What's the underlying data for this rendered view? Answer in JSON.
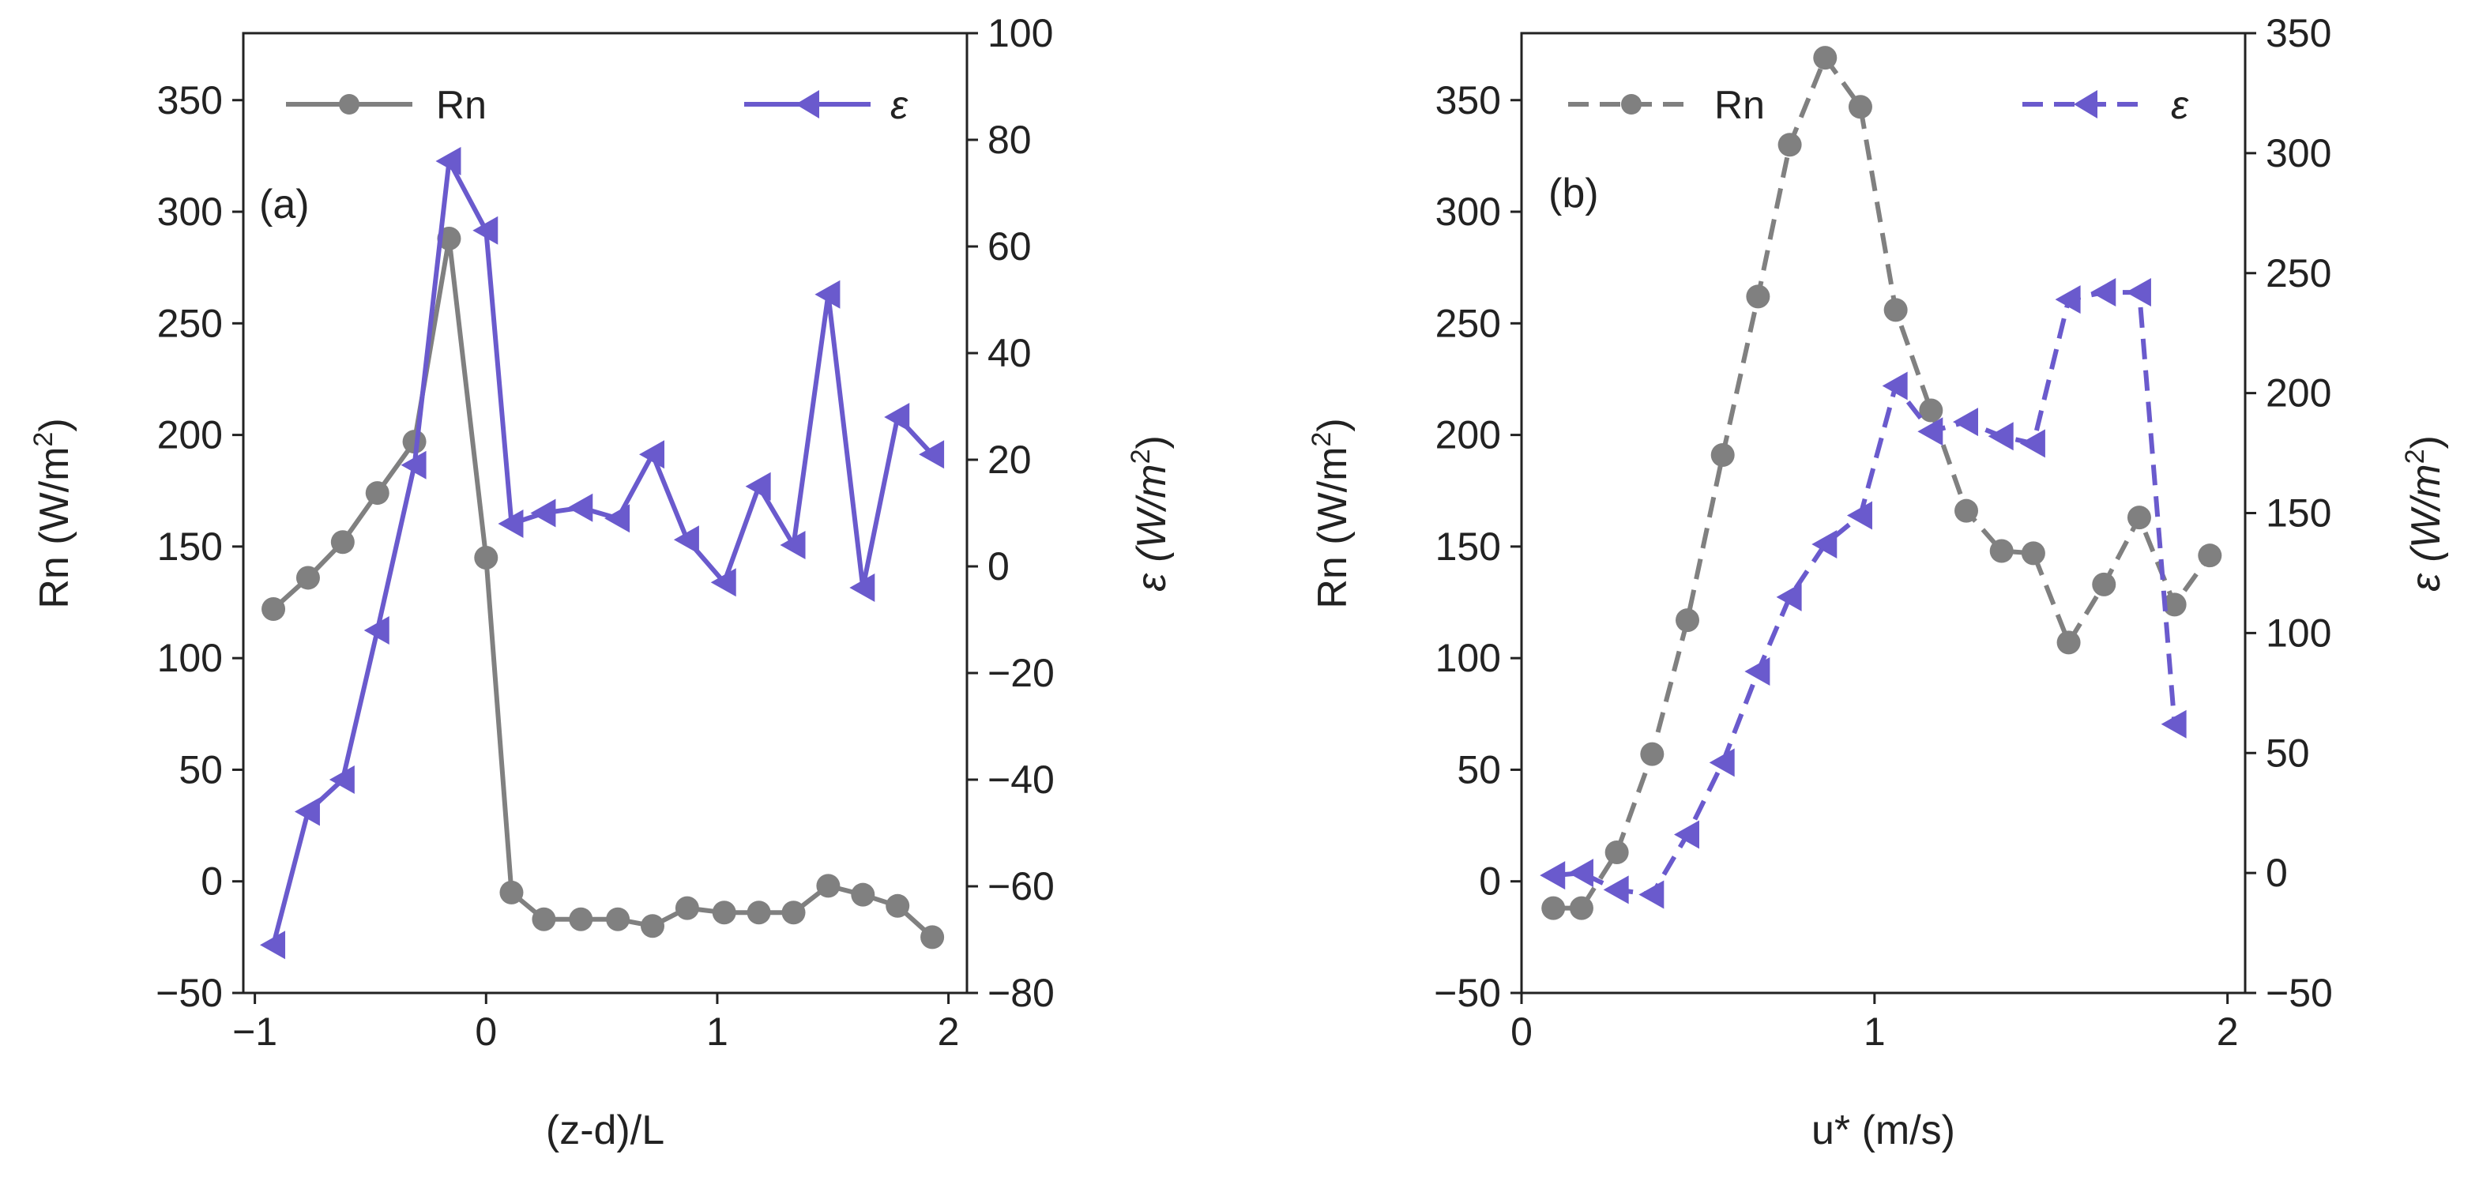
{
  "chart_data": [
    {
      "type": "line",
      "panel_label": "(a)",
      "xlabel": "(z-d)/L",
      "ylabel_left": "Rn (W/m",
      "ylabel_right": "ε (W/m",
      "ylabel_unit_exp": "2",
      "ylabel_close": ")",
      "xlim": [
        -1.05,
        2.08
      ],
      "ylim_left": [
        -50,
        380
      ],
      "ylim_right": [
        -80,
        100
      ],
      "xticks": [
        -1,
        0,
        1,
        2
      ],
      "xtick_labels": [
        "−1",
        "0",
        "1",
        "2"
      ],
      "yticks_left": [
        -50,
        0,
        50,
        100,
        150,
        200,
        250,
        300,
        350
      ],
      "ytick_labels_left": [
        "−50",
        "0",
        "50",
        "100",
        "150",
        "200",
        "250",
        "300",
        "350"
      ],
      "yticks_right": [
        -80,
        -60,
        -40,
        -20,
        0,
        20,
        40,
        60,
        80,
        100
      ],
      "ytick_labels_right": [
        "−80",
        "−60",
        "−40",
        "−20",
        "0",
        "20",
        "40",
        "60",
        "80",
        "100"
      ],
      "legend_position": "top",
      "series": [
        {
          "name": "Rn",
          "axis": "left",
          "color": "#808080",
          "line": "solid",
          "marker": "circle",
          "x": [
            -0.92,
            -0.77,
            -0.62,
            -0.47,
            -0.31,
            -0.16,
            0.0,
            0.11,
            0.25,
            0.41,
            0.57,
            0.72,
            0.87,
            1.03,
            1.18,
            1.33,
            1.48,
            1.63,
            1.78,
            1.93
          ],
          "values": [
            122,
            136,
            152,
            174,
            197,
            288,
            145,
            -5,
            -17,
            -17,
            -17,
            -20,
            -12,
            -14,
            -14,
            -14,
            -2,
            -6,
            -11,
            -25
          ]
        },
        {
          "name": "ε",
          "axis": "right",
          "color": "#6A5ACD",
          "line": "solid",
          "marker": "triangle-left",
          "x": [
            -0.92,
            -0.77,
            -0.62,
            -0.47,
            -0.31,
            -0.16,
            0.0,
            0.11,
            0.25,
            0.41,
            0.57,
            0.72,
            0.87,
            1.03,
            1.18,
            1.33,
            1.48,
            1.63,
            1.78,
            1.93
          ],
          "values": [
            -71,
            -46,
            -40,
            -12,
            19,
            76,
            63,
            8,
            10,
            11,
            9,
            21,
            5,
            -3,
            15,
            4,
            51,
            -4,
            28,
            21
          ]
        }
      ]
    },
    {
      "type": "line",
      "panel_label": "(b)",
      "xlabel": "u* (m/s)",
      "ylabel_left": "Rn (W/m",
      "ylabel_right": "ε (W/m",
      "ylabel_unit_exp": "2",
      "ylabel_close": ")",
      "xlim": [
        0,
        2.05
      ],
      "ylim_left": [
        -50,
        380
      ],
      "ylim_right": [
        -50,
        350
      ],
      "xticks": [
        0,
        1,
        2
      ],
      "xtick_labels": [
        "0",
        "1",
        "2"
      ],
      "yticks_left": [
        -50,
        0,
        50,
        100,
        150,
        200,
        250,
        300,
        350
      ],
      "ytick_labels_left": [
        "−50",
        "0",
        "50",
        "100",
        "150",
        "200",
        "250",
        "300",
        "350"
      ],
      "yticks_right": [
        -50,
        0,
        50,
        100,
        150,
        200,
        250,
        300,
        350
      ],
      "ytick_labels_right": [
        "−50",
        "0",
        "50",
        "100",
        "150",
        "200",
        "250",
        "300",
        "350"
      ],
      "legend_position": "top",
      "series": [
        {
          "name": "Rn",
          "axis": "left",
          "color": "#808080",
          "line": "dashed",
          "marker": "circle",
          "x": [
            0.09,
            0.17,
            0.27,
            0.37,
            0.47,
            0.57,
            0.67,
            0.76,
            0.86,
            0.96,
            1.06,
            1.16,
            1.26,
            1.36,
            1.45,
            1.55,
            1.65,
            1.75,
            1.85,
            1.95
          ],
          "values": [
            -12,
            -12,
            13,
            57,
            117,
            191,
            262,
            330,
            369,
            347,
            256,
            211,
            166,
            148,
            147,
            107,
            133,
            163,
            124,
            146
          ]
        },
        {
          "name": "ε",
          "axis": "right",
          "color": "#6A5ACD",
          "line": "dashed",
          "marker": "triangle-left",
          "x": [
            0.09,
            0.17,
            0.27,
            0.37,
            0.47,
            0.57,
            0.67,
            0.76,
            0.86,
            0.96,
            1.06,
            1.16,
            1.26,
            1.36,
            1.45,
            1.55,
            1.65,
            1.75,
            1.85
          ],
          "values": [
            -1,
            0,
            -7,
            -9,
            16,
            46,
            84,
            115,
            137,
            149,
            203,
            184,
            188,
            182,
            179,
            239,
            242,
            242,
            62
          ]
        }
      ]
    }
  ]
}
